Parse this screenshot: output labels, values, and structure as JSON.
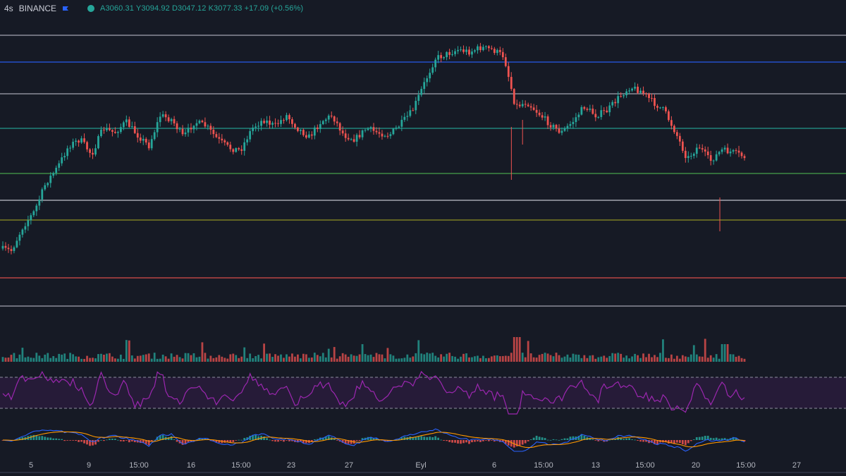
{
  "header": {
    "timeframe": "4s",
    "exchange": "BINANCE",
    "ohlc_text": "A3060.31  Y3094.92  D3047.12  K3077.33  +17.09 (+0.56%)"
  },
  "colors": {
    "background": "#161a25",
    "up": "#26a69a",
    "down": "#ef5350",
    "rsi_line": "#9c27b0",
    "rsi_band": "#2a1b3d",
    "macd_line": "#2962ff",
    "signal_line": "#ff9800"
  },
  "levels": [
    {
      "color": "#b2b5be"
    },
    {
      "color": "#2962ff"
    },
    {
      "color": "#b2b5be"
    },
    {
      "color": "#26a69a"
    },
    {
      "color": "#4caf50"
    },
    {
      "color": "#d1d4dc"
    },
    {
      "color": "#9e9d24"
    },
    {
      "color": "#ef5350"
    },
    {
      "color": "#b2b5be"
    }
  ],
  "x_axis": {
    "ticks": [
      "5",
      "9",
      "15:00",
      "16",
      "15:00",
      "23",
      "27",
      "Eyl",
      "6",
      "15:00",
      "13",
      "15:00",
      "20",
      "15:00",
      "27"
    ]
  },
  "chart_data": {
    "type": "candlestick",
    "symbol_exchange": "BINANCE",
    "interval": "4s",
    "last_ohlc": {
      "open": 3060.31,
      "high": 3094.92,
      "low": 3047.12,
      "close": 3077.33,
      "change": 17.09,
      "change_pct": 0.56
    },
    "x_ticks": [
      "5",
      "9",
      "15:00",
      "16",
      "15:00",
      "23",
      "27",
      "Eyl",
      "6",
      "15:00",
      "13",
      "15:00",
      "20",
      "15:00",
      "27"
    ],
    "close_path": [
      0.05,
      0.04,
      0.15,
      0.22,
      0.35,
      0.42,
      0.52,
      0.55,
      0.48,
      0.6,
      0.58,
      0.63,
      0.57,
      0.52,
      0.66,
      0.64,
      0.56,
      0.63,
      0.61,
      0.55,
      0.51,
      0.5,
      0.6,
      0.64,
      0.61,
      0.66,
      0.6,
      0.56,
      0.63,
      0.66,
      0.57,
      0.55,
      0.6,
      0.58,
      0.57,
      0.62,
      0.68,
      0.8,
      0.92,
      0.94,
      0.96,
      0.95,
      0.97,
      0.96,
      0.93,
      0.7,
      0.72,
      0.67,
      0.62,
      0.58,
      0.63,
      0.7,
      0.66,
      0.68,
      0.74,
      0.79,
      0.77,
      0.72,
      0.68,
      0.58,
      0.46,
      0.52,
      0.45,
      0.5,
      0.49,
      0.47
    ],
    "indicators": [
      "Volume",
      "RSI",
      "MACD"
    ]
  }
}
